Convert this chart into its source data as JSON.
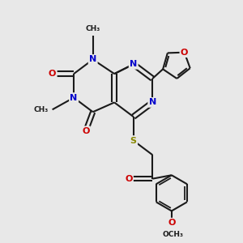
{
  "bg_color": "#e8e8e8",
  "bond_color": "#1a1a1a",
  "N_color": "#0000cc",
  "O_color": "#cc0000",
  "S_color": "#888800",
  "lw": 1.5,
  "dbo": 0.08,
  "fs": 8.0,
  "xlim": [
    0,
    10
  ],
  "ylim": [
    0,
    10
  ]
}
